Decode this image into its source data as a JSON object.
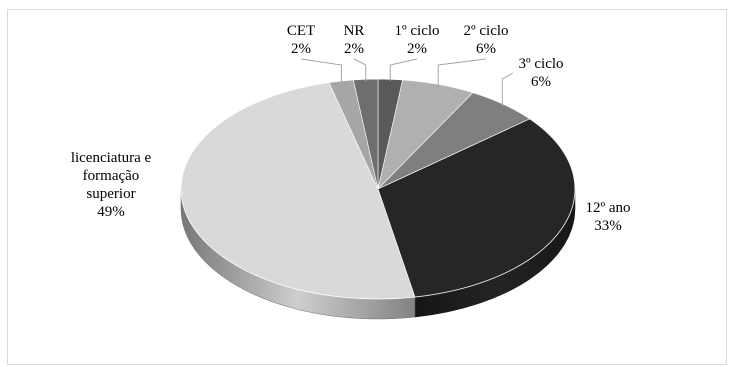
{
  "chart_data": {
    "type": "pie",
    "title": "",
    "style": "3d-pie",
    "slices": [
      {
        "label_lines": [
          "1º ciclo"
        ],
        "value_label": "2%",
        "value": 2,
        "color": "#595959"
      },
      {
        "label_lines": [
          "2º ciclo"
        ],
        "value_label": "6%",
        "value": 6,
        "color": "#b0b0b0"
      },
      {
        "label_lines": [
          "3º ciclo"
        ],
        "value_label": "6%",
        "value": 6,
        "color": "#7f7f7f"
      },
      {
        "label_lines": [
          "12º ano"
        ],
        "value_label": "33%",
        "value": 33,
        "color": "#262626"
      },
      {
        "label_lines": [
          "licenciatura e",
          "formação",
          "superior"
        ],
        "value_label": "49%",
        "value": 49,
        "color": "#d9d9d9"
      },
      {
        "label_lines": [
          "CET"
        ],
        "value_label": "2%",
        "value": 2,
        "color": "#a6a6a6"
      },
      {
        "label_lines": [
          "NR"
        ],
        "value_label": "2%",
        "value": 2,
        "color": "#6e6e6e"
      }
    ]
  }
}
